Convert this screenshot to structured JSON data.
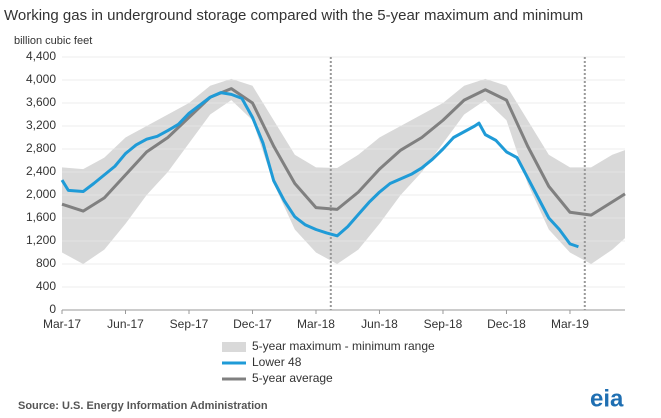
{
  "chart_data": {
    "type": "line",
    "title": "Working gas in underground  storage compared with the 5-year maximum and minimum",
    "y_label": "billion cubic feet",
    "source": "Source:  U.S. Energy Information Administration",
    "logo": "eia",
    "xlim": [
      0,
      26.6
    ],
    "ylim": [
      0,
      4400
    ],
    "xticks": [
      {
        "value": 0,
        "label": "Mar-17"
      },
      {
        "value": 3,
        "label": "Jun-17"
      },
      {
        "value": 6,
        "label": "Sep-17"
      },
      {
        "value": 9,
        "label": "Dec-17"
      },
      {
        "value": 12,
        "label": "Mar-18"
      },
      {
        "value": 15,
        "label": "Jun-18"
      },
      {
        "value": 18,
        "label": "Sep-18"
      },
      {
        "value": 21,
        "label": "Dec-18"
      },
      {
        "value": 24,
        "label": "Mar-19"
      }
    ],
    "yticks": [
      0,
      400,
      800,
      {
        "value": 1200,
        "label": "1,200"
      },
      {
        "value": 1600,
        "label": "1,600"
      },
      {
        "value": 2000,
        "label": "2,000"
      },
      {
        "value": 2400,
        "label": "2,400"
      },
      {
        "value": 2800,
        "label": "2,800"
      },
      {
        "value": 3200,
        "label": "3,200"
      },
      {
        "value": 3600,
        "label": "3,600"
      },
      {
        "value": 4000,
        "label": "4,000"
      },
      {
        "value": 4400,
        "label": "4,400"
      }
    ],
    "grid": true,
    "vlines": [
      12.7,
      24.7
    ],
    "range": {
      "name": "5-year maximum - minimum range",
      "color": "#d9d9d9",
      "x": [
        0,
        1,
        2,
        3,
        4,
        5,
        6,
        7,
        8,
        9,
        10,
        11,
        12,
        13,
        14,
        15,
        16,
        17,
        18,
        19,
        20,
        21,
        22,
        23,
        24,
        25,
        26,
        26.6
      ],
      "max": [
        2480,
        2450,
        2650,
        3000,
        3200,
        3400,
        3600,
        3900,
        4020,
        3900,
        3300,
        2700,
        2480,
        2470,
        2700,
        3000,
        3200,
        3400,
        3600,
        3900,
        4020,
        3900,
        3300,
        2700,
        2480,
        2480,
        2700,
        2780
      ],
      "min": [
        1000,
        800,
        1050,
        1500,
        2000,
        2400,
        2900,
        3400,
        3650,
        3300,
        2200,
        1400,
        1000,
        800,
        1050,
        1500,
        2000,
        2400,
        2900,
        3400,
        3650,
        3300,
        2200,
        1400,
        1000,
        800,
        1050,
        1250
      ]
    },
    "series": [
      {
        "name": "Lower 48",
        "color": "#1f9bd7",
        "x": [
          0,
          0.3,
          1,
          1.5,
          2,
          2.5,
          3,
          3.5,
          4,
          4.5,
          5,
          5.5,
          6,
          6.5,
          7,
          7.5,
          8,
          8.5,
          9,
          9.5,
          10,
          10.5,
          11,
          11.5,
          12,
          12.5,
          13,
          13.5,
          14,
          14.5,
          15,
          15.5,
          16,
          16.5,
          17,
          17.5,
          18,
          18.5,
          19,
          19.5,
          19.7,
          20,
          20.5,
          21,
          21.5,
          22,
          22.5,
          23,
          23.5,
          24,
          24.4
        ],
        "values": [
          2260,
          2080,
          2060,
          2200,
          2350,
          2500,
          2720,
          2870,
          2970,
          3020,
          3120,
          3230,
          3420,
          3560,
          3700,
          3780,
          3750,
          3680,
          3350,
          2900,
          2250,
          1900,
          1620,
          1480,
          1400,
          1340,
          1290,
          1450,
          1660,
          1870,
          2050,
          2200,
          2280,
          2360,
          2470,
          2620,
          2800,
          3000,
          3100,
          3200,
          3250,
          3050,
          2950,
          2750,
          2650,
          2300,
          1950,
          1600,
          1400,
          1150,
          1100
        ]
      },
      {
        "name": "5-year average",
        "color": "#808080",
        "x": [
          0,
          1,
          2,
          3,
          4,
          5,
          6,
          7,
          8,
          9,
          10,
          11,
          12,
          13,
          14,
          15,
          16,
          17,
          18,
          19,
          20,
          21,
          22,
          23,
          24,
          25,
          26,
          26.6
        ],
        "values": [
          1840,
          1720,
          1950,
          2350,
          2750,
          3000,
          3350,
          3700,
          3850,
          3600,
          2850,
          2200,
          1780,
          1750,
          2050,
          2450,
          2780,
          3000,
          3300,
          3650,
          3830,
          3650,
          2850,
          2150,
          1700,
          1650,
          1880,
          2020
        ]
      }
    ]
  }
}
